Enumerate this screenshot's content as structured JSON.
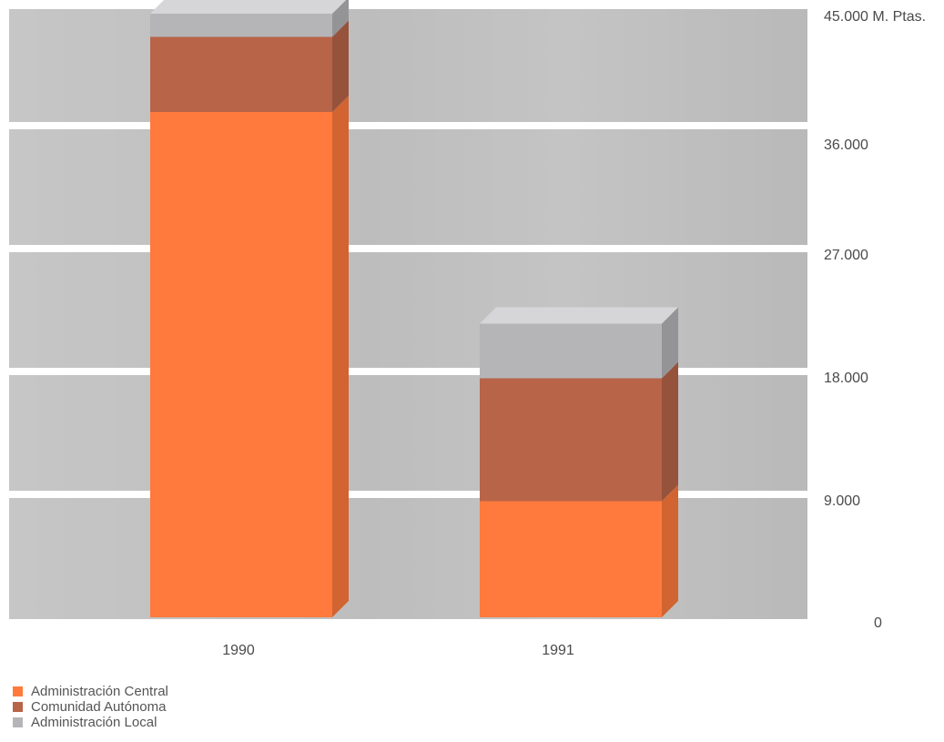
{
  "chart_data": {
    "type": "bar",
    "stacked": true,
    "categories": [
      "1990",
      "1991"
    ],
    "series": [
      {
        "name": "Administración Central",
        "values": [
          37000,
          8500
        ],
        "color": "#ff7a3c"
      },
      {
        "name": "Comunidad Autónoma",
        "values": [
          5500,
          9000
        ],
        "color": "#b86448"
      },
      {
        "name": "Administración Local",
        "values": [
          1700,
          4000
        ],
        "color": "#b5b5b7"
      }
    ],
    "yticks": [
      "0",
      "9.000",
      "18.000",
      "27.000",
      "36.000",
      "45.000 M. Ptas."
    ],
    "ylim": [
      0,
      45000
    ],
    "ylabel": "M. Ptas.",
    "grid": true,
    "legend": "bottom-left"
  }
}
